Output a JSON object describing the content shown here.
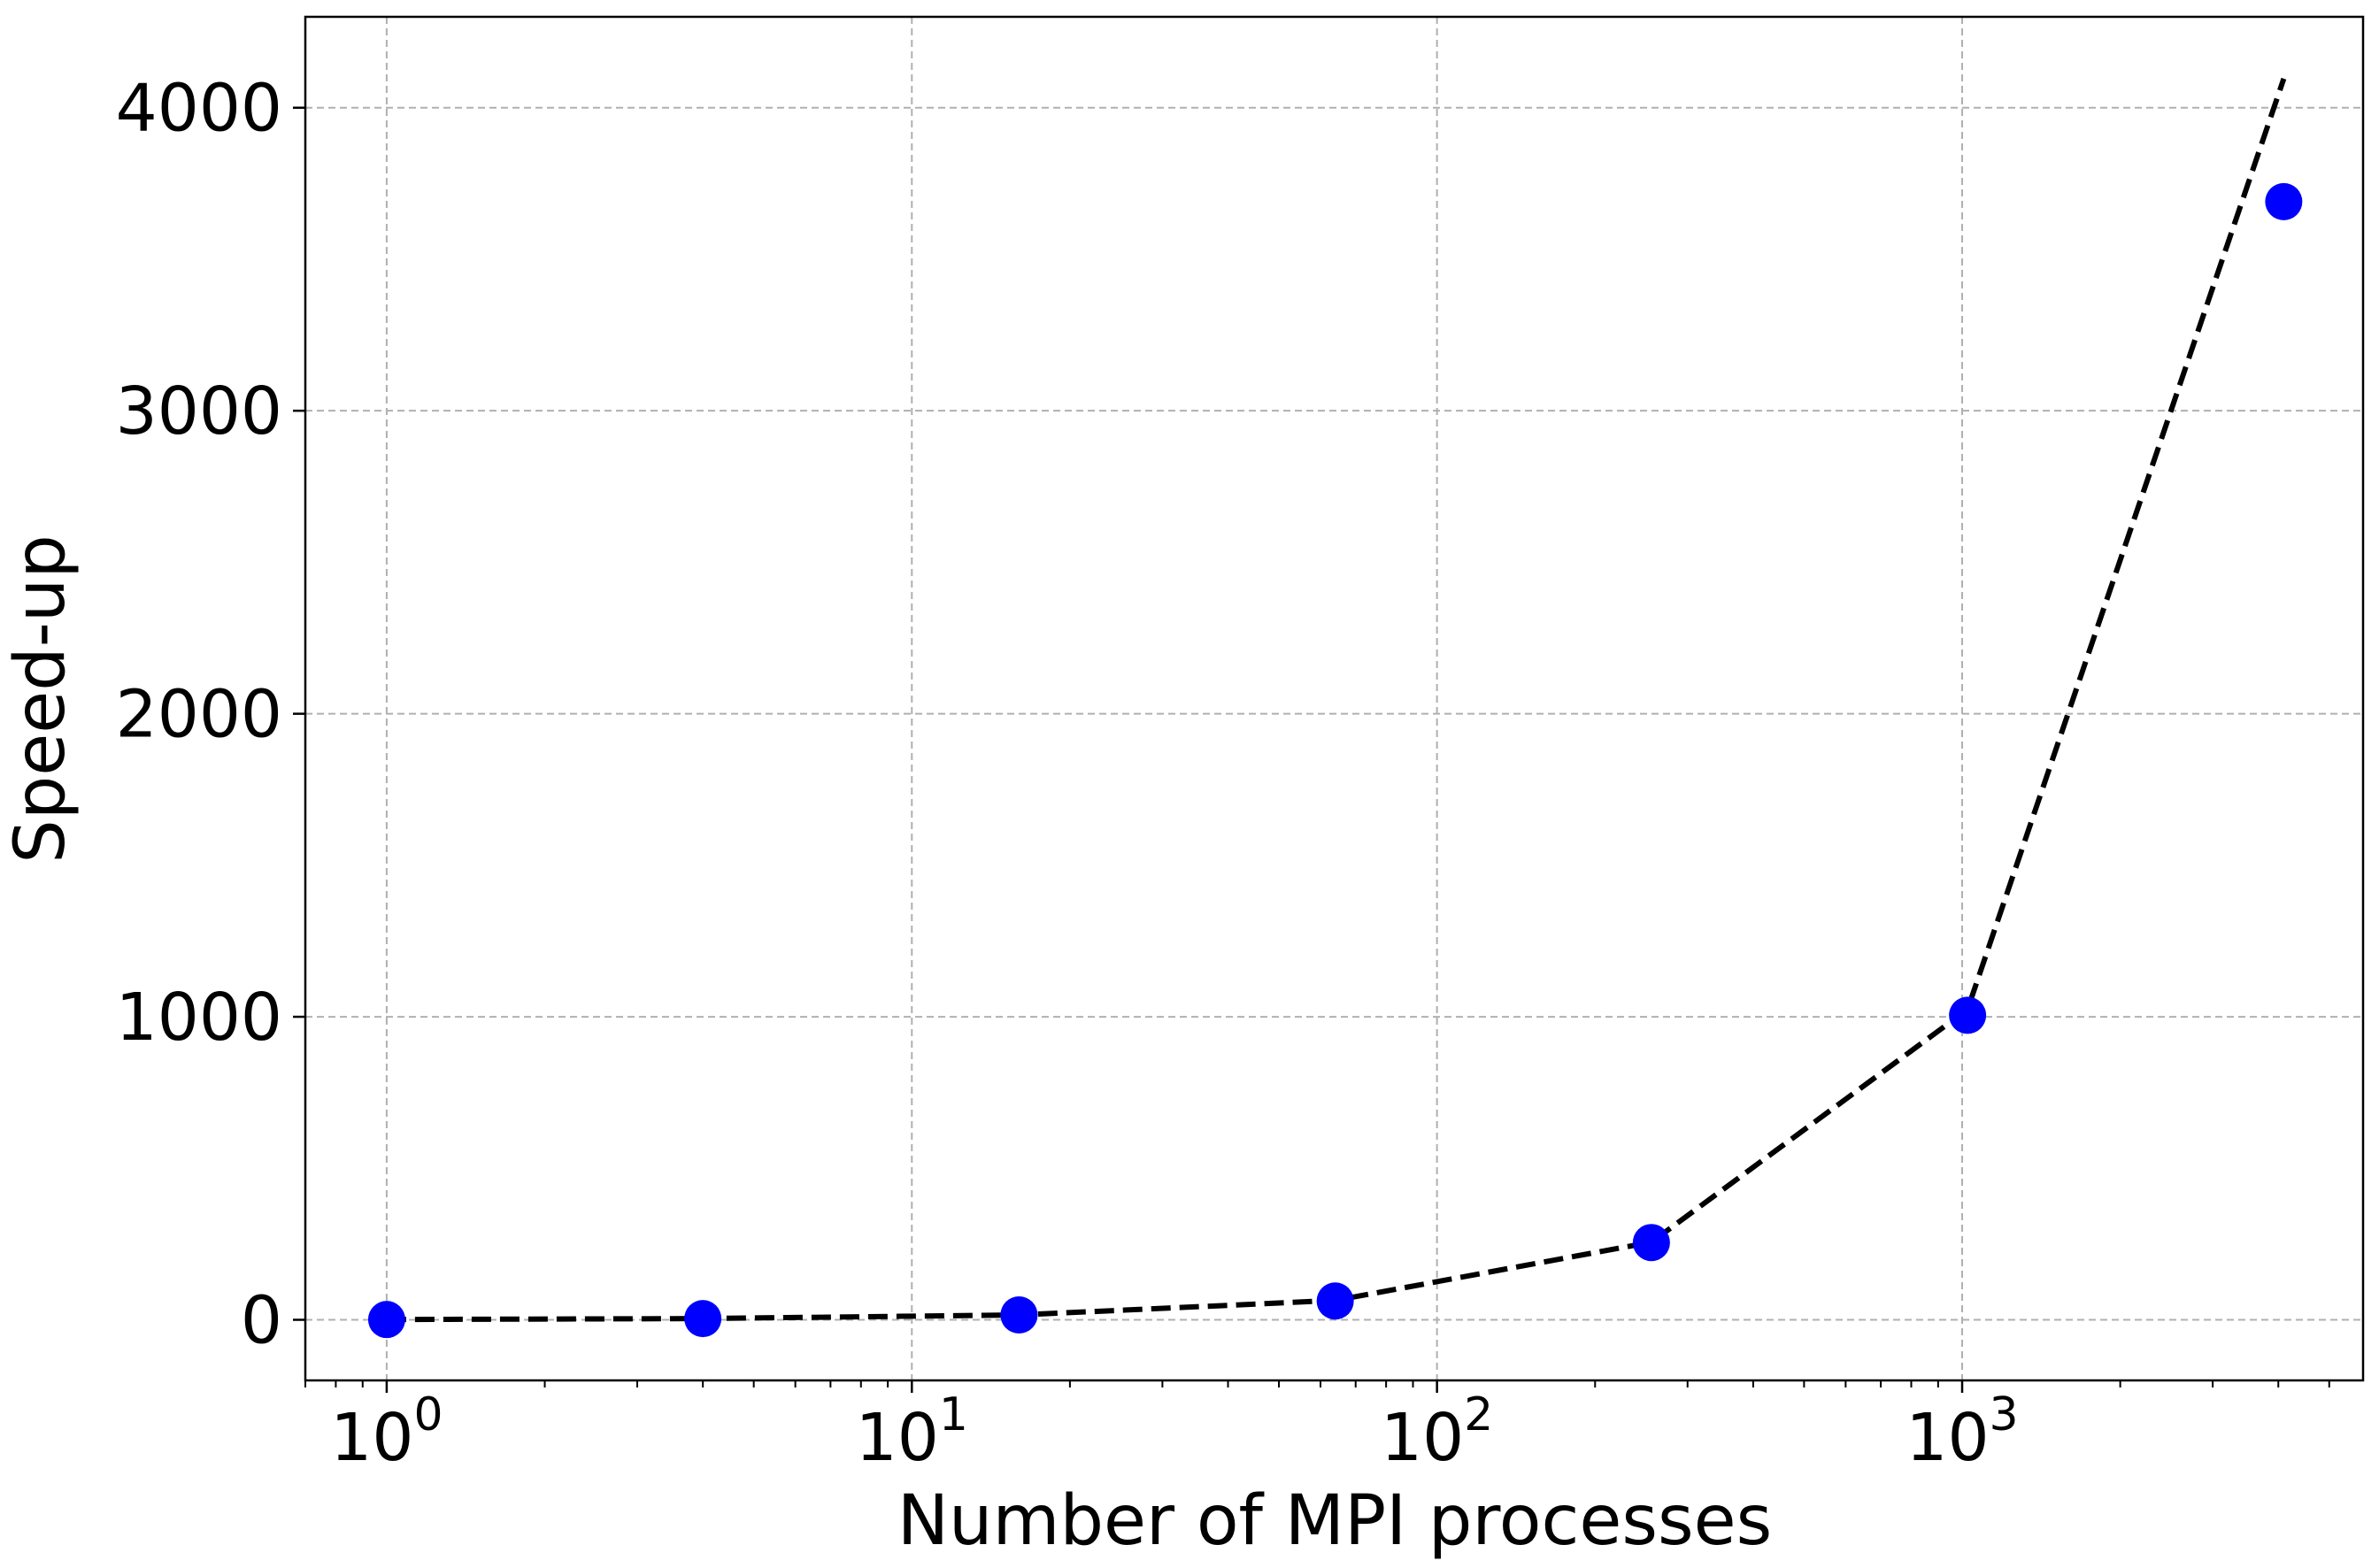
{
  "chart_data": {
    "type": "scatter",
    "title": "",
    "xlabel": "Number of MPI processes",
    "ylabel": "Speed-up",
    "xscale": "log",
    "xlim": [
      0.7,
      5800
    ],
    "ylim": [
      -200,
      4300
    ],
    "grid": true,
    "legend": "none",
    "x_ticks": [
      {
        "value": 1,
        "base": "10",
        "exp": "0"
      },
      {
        "value": 10,
        "base": "10",
        "exp": "1"
      },
      {
        "value": 100,
        "base": "10",
        "exp": "2"
      },
      {
        "value": 1000,
        "base": "10",
        "exp": "3"
      }
    ],
    "y_ticks": [
      {
        "value": 0,
        "label": "0"
      },
      {
        "value": 1000,
        "label": "1000"
      },
      {
        "value": 2000,
        "label": "2000"
      },
      {
        "value": 3000,
        "label": "3000"
      },
      {
        "value": 4000,
        "label": "4000"
      }
    ],
    "series": [
      {
        "kind": "line",
        "style": "dashed",
        "color": "#000000",
        "x": [
          1,
          4,
          16,
          64,
          256,
          1024,
          4096
        ],
        "y": [
          1,
          4,
          16,
          64,
          256,
          1024,
          4096
        ]
      },
      {
        "kind": "scatter",
        "color": "#0000ff",
        "x": [
          1,
          4,
          16,
          64,
          256,
          1024,
          4096
        ],
        "y": [
          1,
          4,
          16,
          62,
          255,
          1005,
          3690
        ]
      }
    ]
  }
}
